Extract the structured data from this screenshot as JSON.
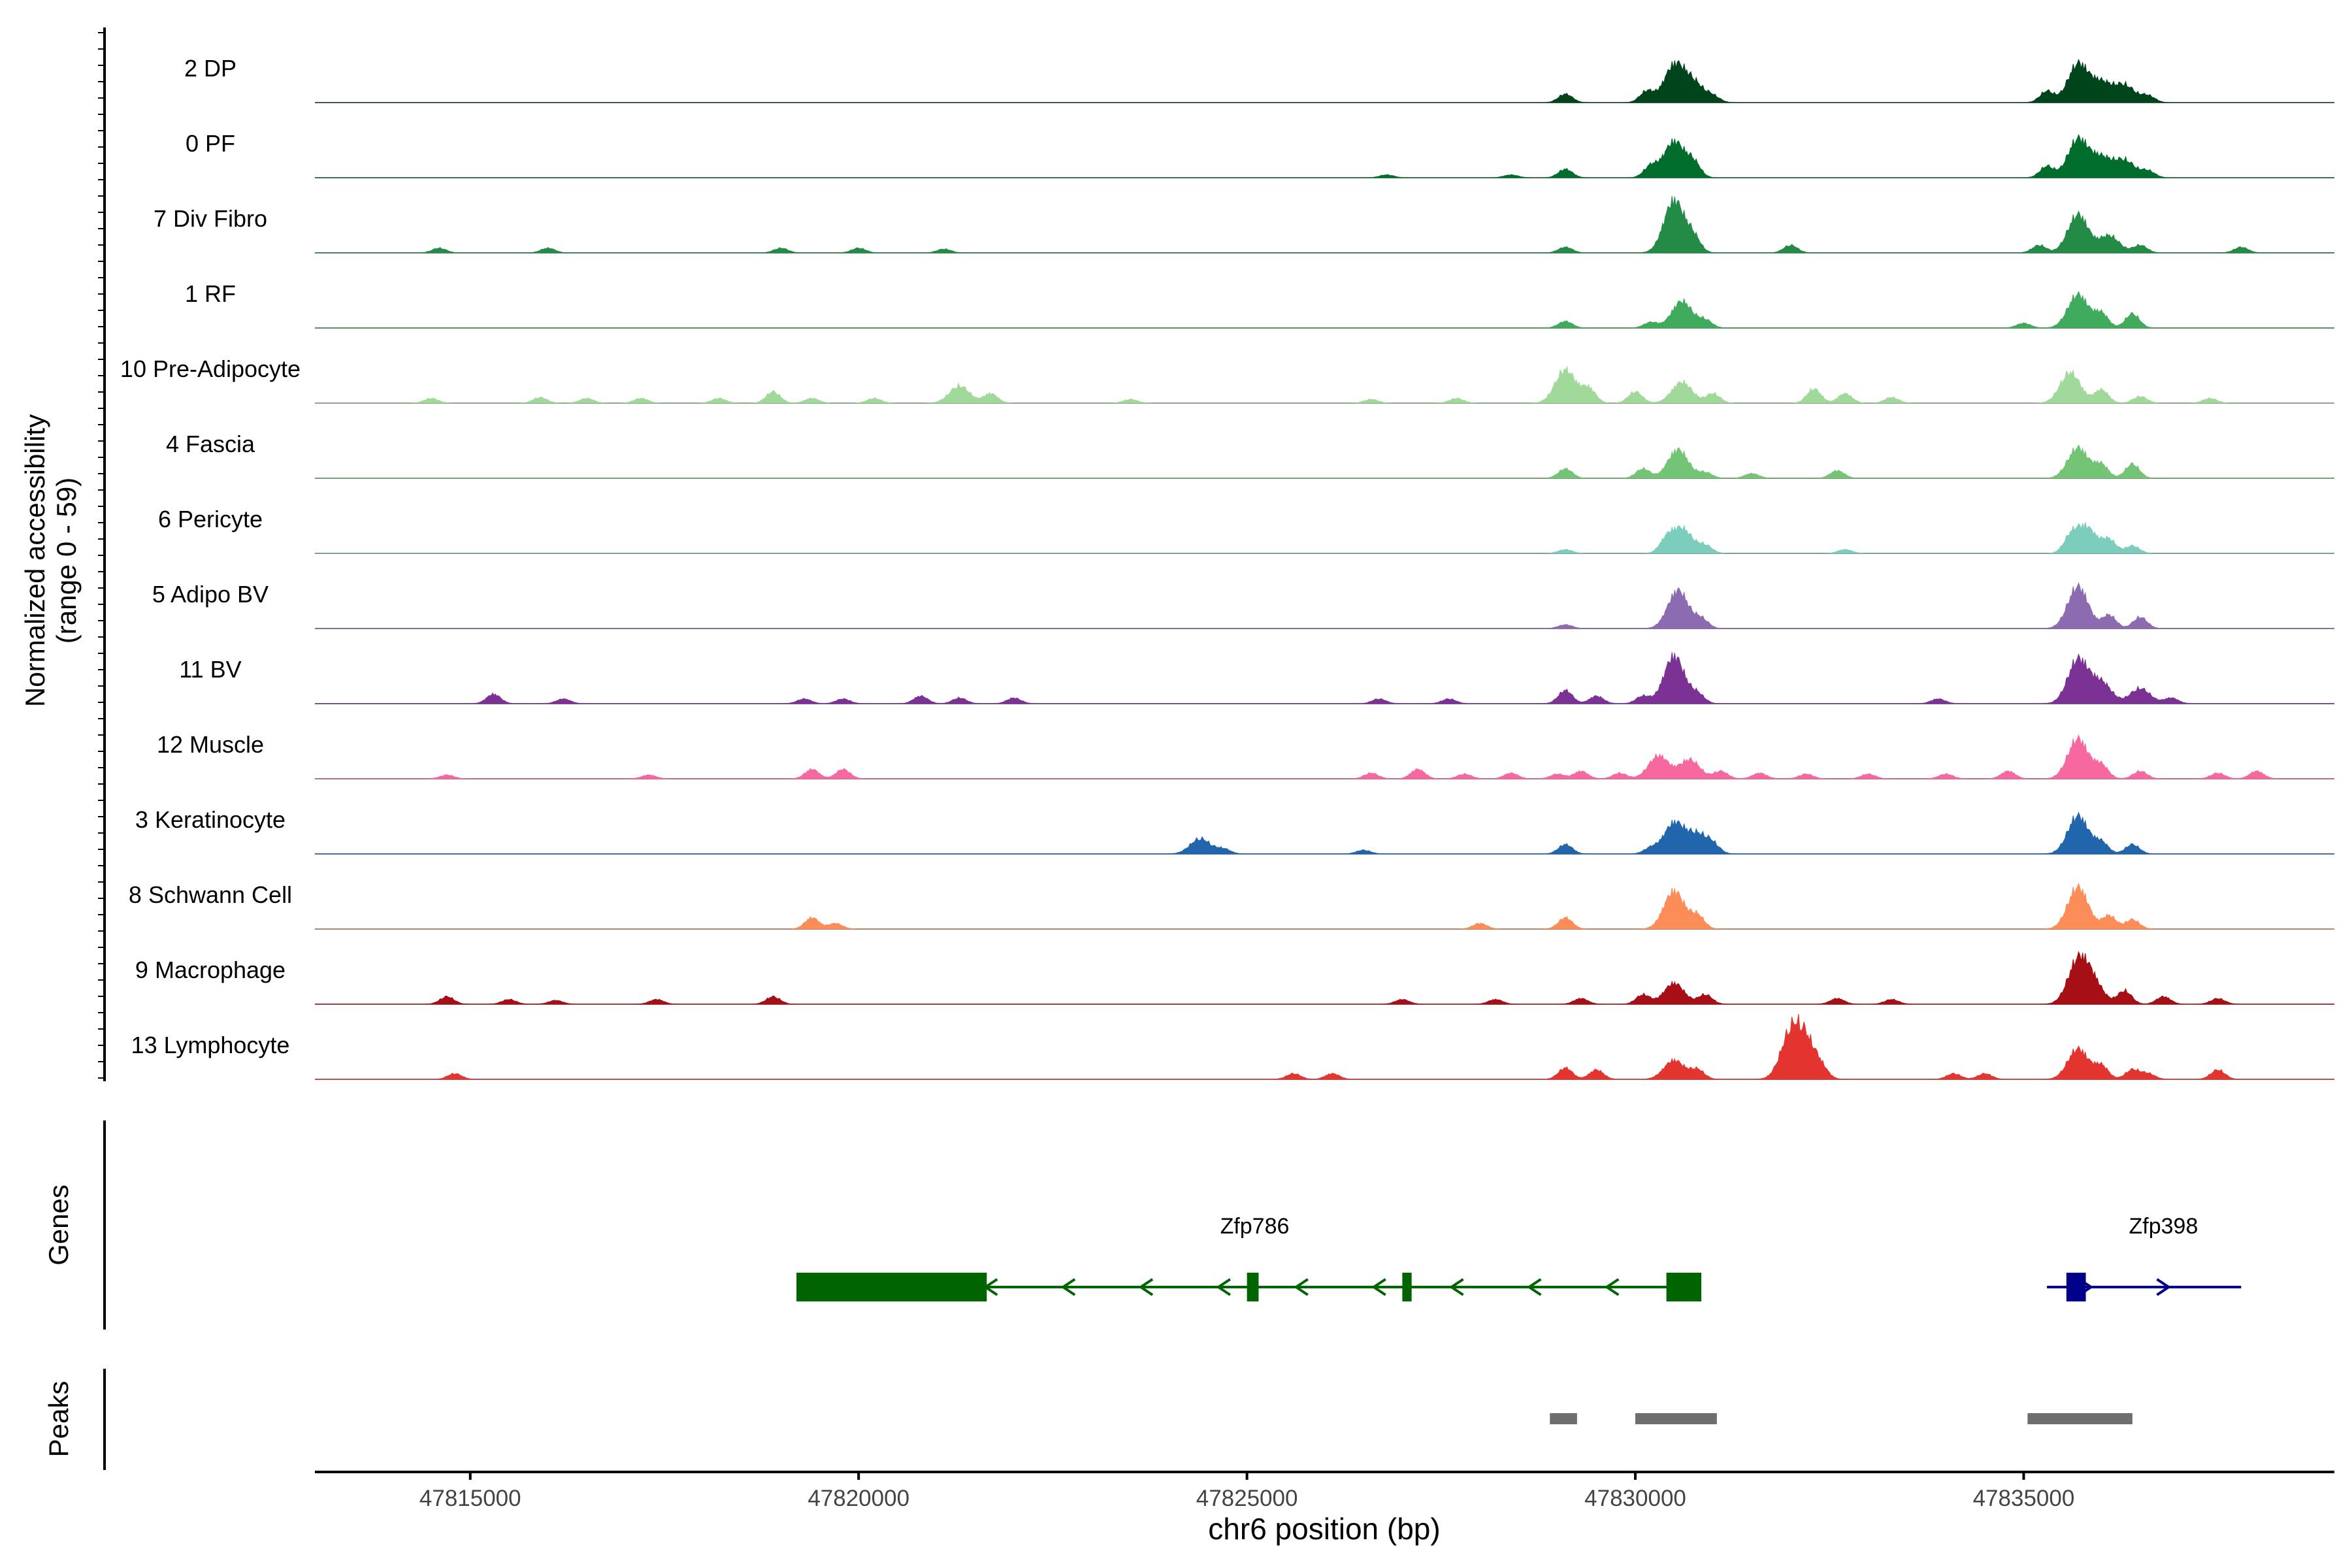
{
  "chart_data": {
    "type": "area",
    "xlabel": "chr6 position (bp)",
    "ylabel_line1": "Normalized accessibility",
    "ylabel_line2": "(range 0 - 59)",
    "xlim": [
      47813000,
      47839000
    ],
    "ylim": [
      0,
      59
    ],
    "xticks": [
      47815000,
      47820000,
      47825000,
      47830000,
      47835000
    ],
    "xtick_labels": [
      "47815000",
      "47820000",
      "47825000",
      "47830000",
      "47835000"
    ],
    "genes_label": "Genes",
    "peaks_label": "Peaks",
    "tracks": [
      {
        "name": "2 DP",
        "color": "#00441b",
        "peaks": [
          [
            47829100,
            9
          ],
          [
            47830150,
            12
          ],
          [
            47830500,
            38
          ],
          [
            47830750,
            20
          ],
          [
            47831000,
            6
          ],
          [
            47835300,
            12
          ],
          [
            47835700,
            40
          ],
          [
            47836000,
            20
          ],
          [
            47836300,
            18
          ],
          [
            47836600,
            7
          ]
        ]
      },
      {
        "name": "0 PF",
        "color": "#006d2c",
        "peaks": [
          [
            47829100,
            9
          ],
          [
            47830200,
            12
          ],
          [
            47830500,
            38
          ],
          [
            47830750,
            15
          ],
          [
            47835300,
            12
          ],
          [
            47835700,
            40
          ],
          [
            47836000,
            20
          ],
          [
            47836300,
            18
          ],
          [
            47836600,
            7
          ],
          [
            47828400,
            3
          ],
          [
            47826800,
            3
          ]
        ]
      },
      {
        "name": "7 Div Fibro",
        "color": "#238b45",
        "peaks": [
          [
            47814600,
            5
          ],
          [
            47816000,
            5
          ],
          [
            47819000,
            5
          ],
          [
            47820000,
            5
          ],
          [
            47821100,
            4
          ],
          [
            47829100,
            6
          ],
          [
            47830500,
            55
          ],
          [
            47830750,
            15
          ],
          [
            47832000,
            8
          ],
          [
            47835200,
            8
          ],
          [
            47835700,
            40
          ],
          [
            47836100,
            18
          ],
          [
            47836500,
            8
          ],
          [
            47837800,
            6
          ]
        ]
      },
      {
        "name": "1 RF",
        "color": "#41ab5d",
        "peaks": [
          [
            47829100,
            7
          ],
          [
            47830200,
            6
          ],
          [
            47830600,
            28
          ],
          [
            47830900,
            8
          ],
          [
            47835000,
            5
          ],
          [
            47835700,
            35
          ],
          [
            47836000,
            15
          ],
          [
            47836400,
            15
          ]
        ]
      },
      {
        "name": "10 Pre-Adipocyte",
        "color": "#a1d99b",
        "peaks": [
          [
            47814500,
            5
          ],
          [
            47815900,
            6
          ],
          [
            47816500,
            5
          ],
          [
            47817200,
            5
          ],
          [
            47818200,
            5
          ],
          [
            47818900,
            12
          ],
          [
            47819400,
            5
          ],
          [
            47820200,
            5
          ],
          [
            47821300,
            18
          ],
          [
            47821700,
            10
          ],
          [
            47823500,
            4
          ],
          [
            47826600,
            4
          ],
          [
            47827700,
            5
          ],
          [
            47829100,
            35
          ],
          [
            47829400,
            15
          ],
          [
            47830000,
            12
          ],
          [
            47830600,
            22
          ],
          [
            47831000,
            10
          ],
          [
            47832300,
            15
          ],
          [
            47832700,
            10
          ],
          [
            47833300,
            6
          ],
          [
            47835600,
            32
          ],
          [
            47836000,
            14
          ],
          [
            47836500,
            7
          ],
          [
            47837400,
            5
          ]
        ]
      },
      {
        "name": "4 Fascia",
        "color": "#74c476",
        "peaks": [
          [
            47829100,
            10
          ],
          [
            47830100,
            10
          ],
          [
            47830550,
            30
          ],
          [
            47830900,
            6
          ],
          [
            47831500,
            5
          ],
          [
            47832600,
            8
          ],
          [
            47835700,
            32
          ],
          [
            47836000,
            14
          ],
          [
            47836400,
            15
          ]
        ]
      },
      {
        "name": "6 Pericyte",
        "color": "#7ccdbb",
        "peaks": [
          [
            47830400,
            12
          ],
          [
            47830600,
            26
          ],
          [
            47830900,
            8
          ],
          [
            47835600,
            14
          ],
          [
            47835800,
            28
          ],
          [
            47836100,
            14
          ],
          [
            47836400,
            8
          ],
          [
            47829100,
            4
          ],
          [
            47832700,
            4
          ]
        ]
      },
      {
        "name": "5 Adipo BV",
        "color": "#8c6bb1",
        "peaks": [
          [
            47829100,
            4
          ],
          [
            47830550,
            40
          ],
          [
            47830850,
            10
          ],
          [
            47835700,
            44
          ],
          [
            47836100,
            14
          ],
          [
            47836500,
            12
          ]
        ]
      },
      {
        "name": "11 BV",
        "color": "#7b3294",
        "peaks": [
          [
            47815300,
            10
          ],
          [
            47816200,
            5
          ],
          [
            47819300,
            5
          ],
          [
            47819800,
            5
          ],
          [
            47820800,
            8
          ],
          [
            47821300,
            6
          ],
          [
            47822000,
            6
          ],
          [
            47826700,
            5
          ],
          [
            47827600,
            5
          ],
          [
            47829100,
            14
          ],
          [
            47829500,
            8
          ],
          [
            47830100,
            8
          ],
          [
            47830500,
            50
          ],
          [
            47830800,
            10
          ],
          [
            47833900,
            5
          ],
          [
            47835700,
            46
          ],
          [
            47836000,
            22
          ],
          [
            47836500,
            16
          ],
          [
            47836900,
            6
          ]
        ]
      },
      {
        "name": "12 Muscle",
        "color": "#f768a1",
        "peaks": [
          [
            47814700,
            4
          ],
          [
            47817300,
            4
          ],
          [
            47819400,
            10
          ],
          [
            47819800,
            10
          ],
          [
            47826600,
            6
          ],
          [
            47827200,
            10
          ],
          [
            47827800,
            5
          ],
          [
            47828400,
            6
          ],
          [
            47829000,
            5
          ],
          [
            47829300,
            8
          ],
          [
            47829800,
            6
          ],
          [
            47830300,
            24
          ],
          [
            47830700,
            20
          ],
          [
            47831100,
            8
          ],
          [
            47831600,
            6
          ],
          [
            47832200,
            5
          ],
          [
            47833000,
            5
          ],
          [
            47834000,
            5
          ],
          [
            47834800,
            8
          ],
          [
            47835700,
            42
          ],
          [
            47836000,
            14
          ],
          [
            47836500,
            8
          ],
          [
            47837500,
            6
          ],
          [
            47838000,
            8
          ]
        ]
      },
      {
        "name": "3 Keratinocyte",
        "color": "#2166ac",
        "peaks": [
          [
            47824400,
            16
          ],
          [
            47824700,
            5
          ],
          [
            47829100,
            10
          ],
          [
            47830200,
            6
          ],
          [
            47830500,
            32
          ],
          [
            47830800,
            20
          ],
          [
            47831000,
            8
          ],
          [
            47835700,
            40
          ],
          [
            47836000,
            12
          ],
          [
            47836400,
            10
          ],
          [
            47826500,
            4
          ]
        ]
      },
      {
        "name": "8 Schwann Cell",
        "color": "#fc8d59",
        "peaks": [
          [
            47819400,
            12
          ],
          [
            47819700,
            6
          ],
          [
            47828000,
            6
          ],
          [
            47829100,
            12
          ],
          [
            47830500,
            40
          ],
          [
            47830800,
            14
          ],
          [
            47835700,
            44
          ],
          [
            47836100,
            14
          ],
          [
            47836400,
            10
          ]
        ]
      },
      {
        "name": "9 Macrophage",
        "color": "#a50f15",
        "peaks": [
          [
            47814700,
            8
          ],
          [
            47815500,
            5
          ],
          [
            47816100,
            4
          ],
          [
            47817400,
            5
          ],
          [
            47818900,
            8
          ],
          [
            47827000,
            5
          ],
          [
            47828200,
            5
          ],
          [
            47829300,
            6
          ],
          [
            47830100,
            10
          ],
          [
            47830500,
            22
          ],
          [
            47830900,
            10
          ],
          [
            47832600,
            6
          ],
          [
            47833300,
            5
          ],
          [
            47835700,
            44
          ],
          [
            47835900,
            20
          ],
          [
            47836300,
            14
          ],
          [
            47836800,
            8
          ],
          [
            47837500,
            6
          ]
        ]
      },
      {
        "name": "13 Lymphocyte",
        "color": "#e3342f",
        "peaks": [
          [
            47814800,
            6
          ],
          [
            47825600,
            6
          ],
          [
            47826100,
            6
          ],
          [
            47829100,
            12
          ],
          [
            47829500,
            10
          ],
          [
            47830500,
            20
          ],
          [
            47830800,
            10
          ],
          [
            47832000,
            45
          ],
          [
            47832200,
            36
          ],
          [
            47832400,
            8
          ],
          [
            47834100,
            6
          ],
          [
            47834500,
            6
          ],
          [
            47835700,
            32
          ],
          [
            47836000,
            14
          ],
          [
            47836400,
            10
          ],
          [
            47836600,
            6
          ],
          [
            47837500,
            10
          ]
        ]
      }
    ],
    "genes": [
      {
        "name": "Zfp786",
        "strand": "-",
        "color": "#006400",
        "start": 47819200,
        "end": 47830850,
        "exons": [
          [
            47819200,
            47821650
          ],
          [
            47825000,
            47825150
          ],
          [
            47827000,
            47827120
          ],
          [
            47830400,
            47830850
          ]
        ]
      },
      {
        "name": "Zfp398",
        "strand": "+",
        "color": "#00008b",
        "start": 47835300,
        "end": 47837800,
        "exons": [
          [
            47835550,
            47835800
          ]
        ]
      }
    ],
    "peak_regions": [
      [
        47828900,
        47829250
      ],
      [
        47830000,
        47831050
      ],
      [
        47835050,
        47836400
      ]
    ]
  }
}
